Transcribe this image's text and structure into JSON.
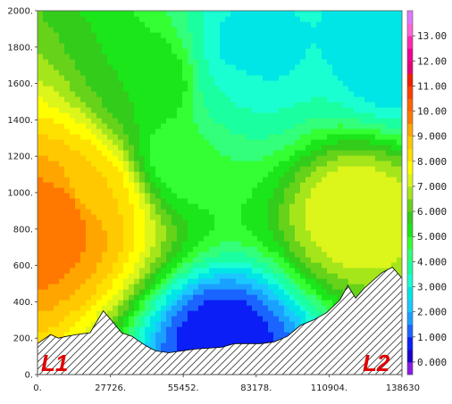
{
  "chart_data": {
    "type": "heatmap",
    "title": "",
    "xlabel": "",
    "ylabel": "",
    "xlim": [
      0,
      138630
    ],
    "ylim": [
      0,
      2000
    ],
    "x_ticks": [
      "0.",
      "27726.",
      "55452.",
      "83178.",
      "110904.",
      "138630"
    ],
    "y_ticks": [
      "0.",
      "200.",
      "400.",
      "600.",
      "800.",
      "1000.",
      "1200.",
      "1400.",
      "1600.",
      "1800.",
      "2000."
    ],
    "colorbar": {
      "labels": [
        "0.000",
        "1.000",
        "2.000",
        "3.000",
        "4.000",
        "5.000",
        "6.000",
        "7.000",
        "8.000",
        "9.000",
        "10.00",
        "11.00",
        "12.00",
        "13.00"
      ],
      "levels": [
        -1,
        0,
        0.5,
        1,
        1.5,
        2,
        2.5,
        3,
        3.5,
        4,
        4.5,
        5,
        5.5,
        6,
        6.5,
        7,
        7.5,
        8,
        8.5,
        9,
        9.5,
        10,
        10.5,
        11,
        11.5,
        12,
        12.5,
        13,
        13.5,
        14
      ],
      "colors": [
        "#8a1ae6",
        "#1a00c8",
        "#0a1ef5",
        "#1a64ff",
        "#1aa0ff",
        "#1ac8ff",
        "#00e6e6",
        "#1affd2",
        "#1affa0",
        "#33ff7a",
        "#33ff33",
        "#1ae61a",
        "#33cc1a",
        "#66d21a",
        "#a5e61a",
        "#dcf51a",
        "#ffff00",
        "#ffe100",
        "#ffc800",
        "#ffa500",
        "#ff7800",
        "#ff6400",
        "#ff3c00",
        "#f01e00",
        "#e60078",
        "#f00096",
        "#ff28b4",
        "#ff64d7",
        "#e178ff"
      ]
    },
    "terrain": {
      "x": [
        0,
        5000,
        8000,
        11000,
        15000,
        20000,
        25000,
        28000,
        32000,
        36000,
        41000,
        45000,
        50000,
        60000,
        70000,
        75000,
        80000,
        85000,
        90000,
        95000,
        100000,
        105000,
        110000,
        115000,
        118000,
        121000,
        124000,
        127000,
        131000,
        135000,
        138630
      ],
      "z": [
        170,
        220,
        200,
        210,
        220,
        230,
        350,
        300,
        230,
        210,
        160,
        130,
        120,
        140,
        150,
        170,
        170,
        170,
        180,
        210,
        270,
        300,
        340,
        410,
        490,
        420,
        470,
        510,
        560,
        590,
        530
      ]
    },
    "field_samples": [
      {
        "x": 0,
        "z": 800,
        "value": 10
      },
      {
        "x": 10000,
        "z": 900,
        "value": 10
      },
      {
        "x": 20000,
        "z": 1000,
        "value": 8.5
      },
      {
        "x": 45000,
        "z": 1600,
        "value": 5.5
      },
      {
        "x": 55000,
        "z": 1200,
        "value": 4.5
      },
      {
        "x": 75000,
        "z": 1600,
        "value": 3.5
      },
      {
        "x": 80000,
        "z": 1750,
        "value": 2.5
      },
      {
        "x": 120000,
        "z": 900,
        "value": 7.5
      },
      {
        "x": 135000,
        "z": 1750,
        "value": 2.5
      },
      {
        "x": 70000,
        "z": 190,
        "value": 0.5
      }
    ],
    "annotations": [
      "L1",
      "L2"
    ]
  }
}
